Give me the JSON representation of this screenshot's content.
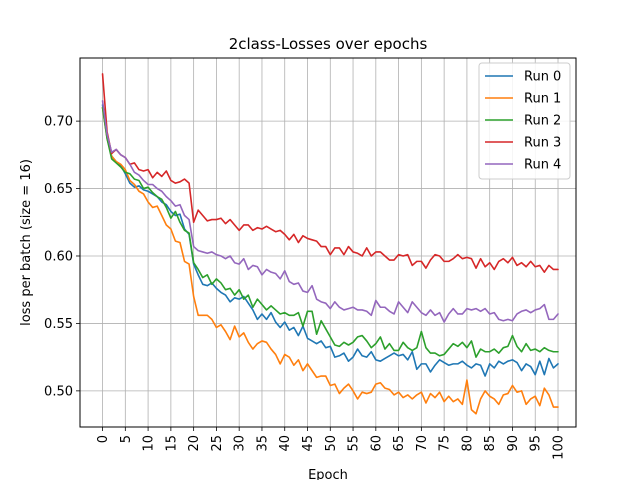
{
  "chart_data": {
    "type": "line",
    "title": "2class-Losses over epochs",
    "xlabel": "Epoch",
    "ylabel": "loss per batch (size = 16)",
    "xlim": [
      -4.95,
      103.95
    ],
    "ylim": [
      0.4732,
      0.7468
    ],
    "xticks": [
      0,
      5,
      10,
      15,
      20,
      25,
      30,
      35,
      40,
      45,
      50,
      55,
      60,
      65,
      70,
      75,
      80,
      85,
      90,
      95,
      100
    ],
    "xtick_labels": [
      "0",
      "5",
      "10",
      "15",
      "20",
      "25",
      "30",
      "35",
      "40",
      "45",
      "50",
      "55",
      "60",
      "65",
      "70",
      "75",
      "80",
      "85",
      "90",
      "95",
      "100"
    ],
    "yticks": [
      0.5,
      0.55,
      0.6,
      0.65,
      0.7
    ],
    "ytick_labels": [
      "0.50",
      "0.55",
      "0.60",
      "0.65",
      "0.70"
    ],
    "grid": true,
    "legend_position": "top-right",
    "series": [
      {
        "name": "Run 0",
        "color": "#1f77b4",
        "values": [
          0.712,
          0.688,
          0.674,
          0.67,
          0.667,
          0.661,
          0.654,
          0.651,
          0.652,
          0.649,
          0.648,
          0.646,
          0.644,
          0.64,
          0.638,
          0.633,
          0.63,
          0.631,
          0.62,
          0.616,
          0.594,
          0.586,
          0.579,
          0.578,
          0.58,
          0.576,
          0.573,
          0.571,
          0.566,
          0.569,
          0.568,
          0.57,
          0.565,
          0.56,
          0.553,
          0.557,
          0.553,
          0.558,
          0.551,
          0.547,
          0.551,
          0.545,
          0.547,
          0.541,
          0.548,
          0.539,
          0.537,
          0.535,
          0.537,
          0.532,
          0.533,
          0.525,
          0.526,
          0.528,
          0.522,
          0.525,
          0.531,
          0.526,
          0.525,
          0.529,
          0.523,
          0.522,
          0.524,
          0.526,
          0.528,
          0.526,
          0.527,
          0.523,
          0.529,
          0.516,
          0.52,
          0.52,
          0.514,
          0.519,
          0.523,
          0.521,
          0.519,
          0.52,
          0.52,
          0.522,
          0.519,
          0.517,
          0.52,
          0.519,
          0.511,
          0.52,
          0.517,
          0.522,
          0.52,
          0.522,
          0.523,
          0.521,
          0.515,
          0.52,
          0.518,
          0.512,
          0.522,
          0.512,
          0.524,
          0.517,
          0.52
        ]
      },
      {
        "name": "Run 1",
        "color": "#ff7f0e",
        "values": [
          0.71,
          0.687,
          0.674,
          0.67,
          0.668,
          0.664,
          0.656,
          0.653,
          0.648,
          0.646,
          0.64,
          0.636,
          0.637,
          0.63,
          0.623,
          0.62,
          0.611,
          0.61,
          0.596,
          0.594,
          0.57,
          0.556,
          0.556,
          0.556,
          0.553,
          0.547,
          0.549,
          0.544,
          0.538,
          0.548,
          0.54,
          0.543,
          0.536,
          0.531,
          0.535,
          0.537,
          0.536,
          0.531,
          0.527,
          0.52,
          0.527,
          0.525,
          0.519,
          0.523,
          0.515,
          0.52,
          0.515,
          0.51,
          0.511,
          0.511,
          0.504,
          0.505,
          0.498,
          0.502,
          0.505,
          0.5,
          0.494,
          0.499,
          0.498,
          0.499,
          0.505,
          0.506,
          0.502,
          0.501,
          0.497,
          0.499,
          0.495,
          0.497,
          0.494,
          0.497,
          0.499,
          0.491,
          0.498,
          0.495,
          0.499,
          0.492,
          0.496,
          0.492,
          0.494,
          0.49,
          0.508,
          0.486,
          0.483,
          0.494,
          0.5,
          0.496,
          0.494,
          0.49,
          0.497,
          0.498,
          0.504,
          0.499,
          0.5,
          0.49,
          0.494,
          0.496,
          0.489,
          0.502,
          0.497,
          0.488,
          0.488
        ]
      },
      {
        "name": "Run 2",
        "color": "#2ca02c",
        "values": [
          0.71,
          0.687,
          0.672,
          0.669,
          0.666,
          0.662,
          0.661,
          0.657,
          0.656,
          0.65,
          0.651,
          0.647,
          0.644,
          0.642,
          0.636,
          0.628,
          0.633,
          0.625,
          0.619,
          0.617,
          0.595,
          0.59,
          0.584,
          0.586,
          0.579,
          0.583,
          0.58,
          0.575,
          0.576,
          0.571,
          0.575,
          0.568,
          0.571,
          0.562,
          0.568,
          0.564,
          0.56,
          0.563,
          0.56,
          0.557,
          0.558,
          0.556,
          0.556,
          0.558,
          0.548,
          0.559,
          0.559,
          0.542,
          0.552,
          0.546,
          0.54,
          0.534,
          0.533,
          0.536,
          0.534,
          0.536,
          0.54,
          0.541,
          0.537,
          0.532,
          0.535,
          0.54,
          0.531,
          0.535,
          0.53,
          0.53,
          0.536,
          0.532,
          0.53,
          0.532,
          0.544,
          0.532,
          0.528,
          0.528,
          0.526,
          0.527,
          0.531,
          0.535,
          0.533,
          0.536,
          0.532,
          0.537,
          0.525,
          0.531,
          0.529,
          0.529,
          0.531,
          0.528,
          0.532,
          0.533,
          0.541,
          0.533,
          0.529,
          0.535,
          0.53,
          0.531,
          0.529,
          0.532,
          0.53,
          0.529,
          0.529
        ]
      },
      {
        "name": "Run 3",
        "color": "#d62728",
        "values": [
          0.735,
          0.692,
          0.676,
          0.679,
          0.675,
          0.673,
          0.668,
          0.669,
          0.664,
          0.663,
          0.664,
          0.658,
          0.662,
          0.659,
          0.663,
          0.656,
          0.654,
          0.655,
          0.657,
          0.654,
          0.625,
          0.634,
          0.63,
          0.626,
          0.627,
          0.627,
          0.628,
          0.624,
          0.627,
          0.623,
          0.619,
          0.623,
          0.623,
          0.619,
          0.621,
          0.62,
          0.622,
          0.62,
          0.618,
          0.619,
          0.616,
          0.612,
          0.616,
          0.61,
          0.615,
          0.613,
          0.612,
          0.611,
          0.607,
          0.607,
          0.601,
          0.606,
          0.606,
          0.601,
          0.607,
          0.603,
          0.602,
          0.6,
          0.606,
          0.6,
          0.603,
          0.603,
          0.6,
          0.597,
          0.597,
          0.601,
          0.6,
          0.601,
          0.593,
          0.596,
          0.596,
          0.591,
          0.597,
          0.601,
          0.6,
          0.596,
          0.596,
          0.598,
          0.601,
          0.598,
          0.599,
          0.598,
          0.591,
          0.598,
          0.592,
          0.595,
          0.59,
          0.596,
          0.598,
          0.595,
          0.599,
          0.593,
          0.595,
          0.592,
          0.596,
          0.592,
          0.593,
          0.588,
          0.593,
          0.59,
          0.59
        ]
      },
      {
        "name": "Run 4",
        "color": "#9467bd",
        "values": [
          0.715,
          0.69,
          0.677,
          0.679,
          0.675,
          0.673,
          0.668,
          0.662,
          0.66,
          0.656,
          0.653,
          0.653,
          0.65,
          0.648,
          0.644,
          0.641,
          0.637,
          0.638,
          0.63,
          0.627,
          0.607,
          0.604,
          0.603,
          0.602,
          0.603,
          0.601,
          0.6,
          0.598,
          0.6,
          0.595,
          0.594,
          0.598,
          0.59,
          0.593,
          0.592,
          0.586,
          0.59,
          0.588,
          0.587,
          0.583,
          0.589,
          0.581,
          0.579,
          0.58,
          0.574,
          0.573,
          0.578,
          0.568,
          0.566,
          0.565,
          0.561,
          0.566,
          0.562,
          0.56,
          0.561,
          0.562,
          0.56,
          0.56,
          0.559,
          0.556,
          0.567,
          0.562,
          0.562,
          0.559,
          0.557,
          0.566,
          0.562,
          0.558,
          0.566,
          0.562,
          0.558,
          0.556,
          0.56,
          0.556,
          0.558,
          0.551,
          0.557,
          0.561,
          0.557,
          0.557,
          0.561,
          0.56,
          0.561,
          0.559,
          0.561,
          0.557,
          0.558,
          0.553,
          0.552,
          0.553,
          0.552,
          0.557,
          0.559,
          0.56,
          0.558,
          0.56,
          0.561,
          0.564,
          0.553,
          0.553,
          0.557
        ]
      }
    ]
  }
}
